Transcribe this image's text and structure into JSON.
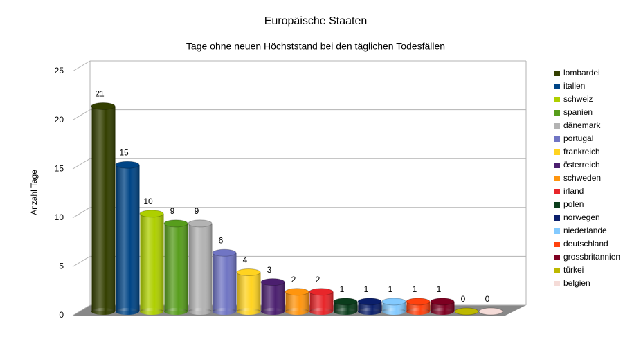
{
  "chart_data": {
    "type": "bar",
    "title": "Europäische Staaten",
    "subtitle": "Tage ohne neuen Höchststand bei den täglichen Todesfällen",
    "y_label": "Anzahl Tage",
    "categories": [
      null
    ],
    "ylim": [
      0,
      25
    ],
    "yticks": [
      0,
      5,
      10,
      15,
      20,
      25
    ],
    "grid": true,
    "legend": "right",
    "series": [
      {
        "name": "lombardei",
        "color": "#333f00",
        "values": [
          21
        ]
      },
      {
        "name": "italien",
        "color": "#004586",
        "values": [
          15
        ]
      },
      {
        "name": "schweiz",
        "color": "#aecf00",
        "values": [
          10
        ]
      },
      {
        "name": "spanien",
        "color": "#579d1c",
        "values": [
          9
        ]
      },
      {
        "name": "dänemark",
        "color": "#b3b3b3",
        "values": [
          9
        ]
      },
      {
        "name": "portugal",
        "color": "#7075c4",
        "values": [
          6
        ]
      },
      {
        "name": "frankreich",
        "color": "#ffd320",
        "values": [
          4
        ]
      },
      {
        "name": "österreich",
        "color": "#4b1f6f",
        "values": [
          3
        ]
      },
      {
        "name": "schweden",
        "color": "#ff950e",
        "values": [
          2
        ]
      },
      {
        "name": "irland",
        "color": "#e8262a",
        "values": [
          2
        ]
      },
      {
        "name": "polen",
        "color": "#0b3d1c",
        "values": [
          1
        ]
      },
      {
        "name": "norwegen",
        "color": "#0b1f6b",
        "values": [
          1
        ]
      },
      {
        "name": "niederlande",
        "color": "#83caff",
        "values": [
          1
        ]
      },
      {
        "name": "deutschland",
        "color": "#ff420e",
        "values": [
          1
        ]
      },
      {
        "name": "grossbritannien",
        "color": "#7e0021",
        "values": [
          1
        ]
      },
      {
        "name": "türkei",
        "color": "#bdb800",
        "values": [
          0
        ]
      },
      {
        "name": "belgien",
        "color": "#f5dcd8",
        "values": [
          0
        ]
      }
    ]
  }
}
